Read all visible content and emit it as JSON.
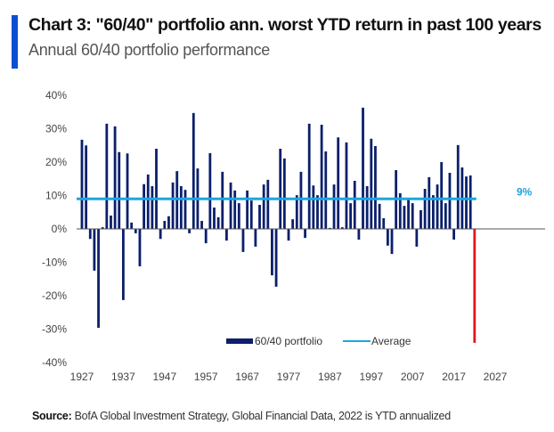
{
  "header": {
    "title": "Chart 3: \"60/40\" portfolio ann. worst YTD return in past 100 years",
    "subtitle": "Annual 60/40 portfolio performance"
  },
  "footer": {
    "source_label": "Source:",
    "source_text": " BofA Global Investment Strategy, Global Financial Data, 2022 is YTD annualized"
  },
  "colors": {
    "bar": "#0b1f6b",
    "highlight_bar": "#e8141b",
    "average_line": "#1ca5e0",
    "axis": "#555555",
    "accent": "#0a4fd1"
  },
  "chart_data": {
    "type": "bar",
    "title": "Chart 3: \"60/40\" portfolio ann. worst YTD return in past 100 years",
    "subtitle": "Annual 60/40 portfolio performance",
    "xlabel": "",
    "ylabel": "",
    "ylim": [
      -40,
      40
    ],
    "yticks": [
      40,
      30,
      20,
      10,
      0,
      -10,
      -20,
      -30,
      -40
    ],
    "ytick_labels": [
      "40%",
      "30%",
      "20%",
      "10%",
      "0%",
      "-10%",
      "-20%",
      "-30%",
      "-40%"
    ],
    "xlim": [
      1927,
      2027
    ],
    "xticks": [
      1927,
      1937,
      1947,
      1957,
      1967,
      1977,
      1987,
      1997,
      2007,
      2017,
      2027
    ],
    "xtick_labels": [
      "1927",
      "1937",
      "1947",
      "1957",
      "1967",
      "1977",
      "1987",
      "1997",
      "2007",
      "2017",
      "2027"
    ],
    "grid": false,
    "legend": {
      "placement": "bottom-center",
      "entries": [
        "60/40 portfolio",
        "Average"
      ]
    },
    "start_year": 1927,
    "highlight_year": 2022,
    "series": [
      {
        "name": "60/40 portfolio",
        "values": [
          26.7,
          25.0,
          -3.0,
          -12.5,
          -29.6,
          0.5,
          31.5,
          4.0,
          30.7,
          23.0,
          -21.3,
          22.6,
          1.9,
          -1.3,
          -11.2,
          13.4,
          16.3,
          12.8,
          24.0,
          -3.0,
          2.4,
          3.8,
          13.9,
          17.3,
          12.8,
          11.7,
          -1.3,
          34.7,
          18.1,
          2.4,
          -4.3,
          22.7,
          6.4,
          3.5,
          17.1,
          -3.5,
          13.9,
          11.5,
          7.7,
          -6.9,
          11.5,
          8.5,
          -5.3,
          7.2,
          13.3,
          14.7,
          -13.9,
          -17.3,
          24.0,
          21.1,
          -3.5,
          2.9,
          10.1,
          17.1,
          -2.7,
          31.5,
          13.0,
          10.1,
          31.2,
          23.2,
          0.3,
          13.3,
          27.4,
          0.5,
          25.9,
          7.7,
          14.4,
          -3.2,
          36.3,
          12.8,
          27.0,
          24.8,
          7.5,
          3.2,
          -5.0,
          -7.5,
          17.6,
          10.7,
          6.9,
          9.1,
          7.7,
          -5.3,
          5.6,
          12.0,
          15.5,
          10.1,
          13.3,
          20.0,
          7.7,
          16.8,
          -3.2,
          25.1,
          18.4,
          15.7,
          16.0,
          -34.1
        ]
      },
      {
        "name": "Average",
        "value": 9,
        "label": "9%"
      }
    ]
  }
}
